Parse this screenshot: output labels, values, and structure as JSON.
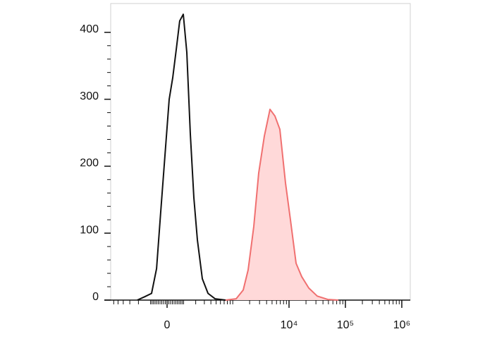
{
  "chart_data": {
    "type": "histogram-overlay",
    "xscale": "biexponential",
    "xlim": [
      -681,
      1414000
    ],
    "xticks": [
      0,
      {
        "value": 10000,
        "label": "10⁴"
      },
      {
        "value": 100000,
        "label": "10⁵"
      },
      {
        "value": 1000000,
        "label": "10⁶"
      }
    ],
    "ylim": [
      0,
      443
    ],
    "yticks": [
      0,
      100,
      200,
      300,
      400
    ],
    "series": [
      {
        "color": "#111111",
        "fill": "none",
        "x": [
          -212,
          -145,
          -93,
          -61,
          -36,
          -12,
          12,
          32,
          53,
          74,
          98,
          123,
          151,
          182,
          217,
          274,
          353,
          477,
          744
        ],
        "values": [
          0,
          5,
          10,
          47,
          132,
          216,
          300,
          332,
          375,
          417,
          427,
          370,
          248,
          153,
          90,
          32,
          10,
          2,
          0
        ]
      },
      {
        "color": "#f07070",
        "fill": "#ffd9d9",
        "x": [
          744,
          1151,
          1537,
          1881,
          2372,
          2900,
          3651,
          4597,
          5622,
          6875,
          8660,
          10590,
          13340,
          16790,
          22380,
          31620,
          48700,
          74900
        ],
        "values": [
          0,
          2,
          15,
          45,
          110,
          190,
          245,
          285,
          275,
          255,
          175,
          120,
          55,
          35,
          18,
          6,
          1,
          0
        ]
      }
    ]
  }
}
